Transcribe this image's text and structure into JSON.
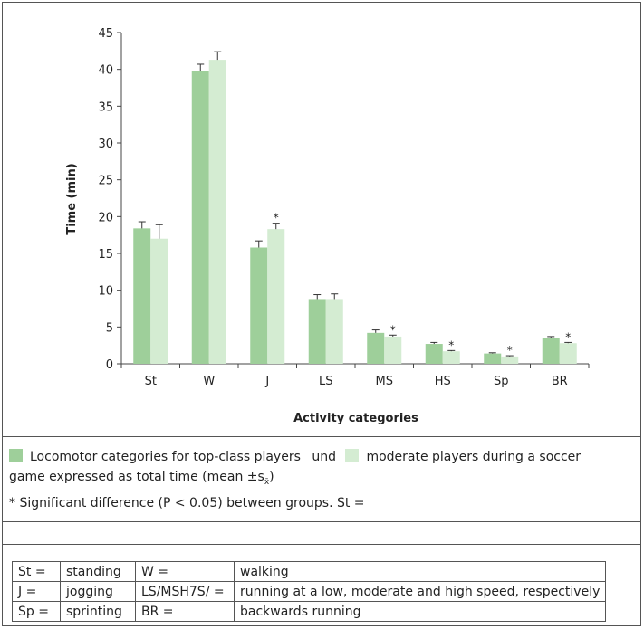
{
  "chart_data": {
    "type": "bar",
    "categories": [
      "St",
      "W",
      "J",
      "LS",
      "MS",
      "HS",
      "Sp",
      "BR"
    ],
    "series": [
      {
        "name": "Locomotor categories for top-class players",
        "color": "#9ecf9a",
        "values": [
          18.4,
          39.8,
          15.8,
          8.8,
          4.2,
          2.7,
          1.4,
          3.5
        ],
        "errors": [
          0.9,
          0.9,
          0.9,
          0.6,
          0.4,
          0.2,
          0.1,
          0.2
        ]
      },
      {
        "name": "moderate players during a soccer game expressed as total time (mean ±sx̄)",
        "color": "#d4ecd2",
        "values": [
          17.0,
          41.3,
          18.3,
          8.8,
          3.7,
          1.7,
          1.0,
          2.8
        ],
        "errors": [
          1.9,
          1.1,
          0.8,
          0.7,
          0.2,
          0.1,
          0.1,
          0.1
        ]
      }
    ],
    "significant": [
      "J",
      "MS",
      "HS",
      "Sp",
      "BR"
    ],
    "significance_marker": "*",
    "ylim": [
      0,
      45
    ],
    "yticks": [
      0,
      5,
      10,
      15,
      20,
      25,
      30,
      35,
      40,
      45
    ],
    "ylabel": "Time (min)",
    "xlabel": "Activity categories",
    "grid": false
  },
  "caption": {
    "part1": "Locomotor categories for top-class players",
    "connector": "und",
    "part2": "moderate players during a soccer",
    "part3": "game expressed as total time (mean ±s",
    "subscript": "x̄",
    "part4": ")"
  },
  "note": "* Significant difference (P < 0.05) between groups. St =",
  "abbreviations": [
    {
      "c1": "St =",
      "c2": "standing",
      "c3": "W =",
      "c4": "walking"
    },
    {
      "c1": "J =",
      "c2": "jogging",
      "c3": "LS/MSH7S/ =",
      "c4": "running at a low, moderate and high speed, respectively"
    },
    {
      "c1": "Sp =",
      "c2": "sprinting",
      "c3": "BR =",
      "c4": "backwards running"
    }
  ]
}
